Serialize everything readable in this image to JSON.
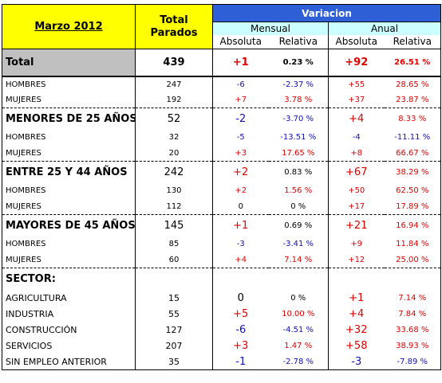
{
  "header": {
    "period": "Marzo 2012",
    "total_parados": "Total Parados",
    "variacion": "Variacion",
    "mensual": "Mensual",
    "anual": "Anual",
    "absoluta": "Absoluta",
    "relativa": "Relativa"
  },
  "rows": [
    {
      "label": "Total",
      "total": "439",
      "m_abs": "+1",
      "m_rel": "0.23 %",
      "a_abs": "+92",
      "a_rel": "26.51 %"
    },
    {
      "label": "HOMBRES",
      "total": "247",
      "m_abs": "-6",
      "m_rel": "-2.37 %",
      "a_abs": "+55",
      "a_rel": "28.65 %"
    },
    {
      "label": "MUJERES",
      "total": "192",
      "m_abs": "+7",
      "m_rel": "3.78 %",
      "a_abs": "+37",
      "a_rel": "23.87 %"
    },
    {
      "label": "MENORES DE 25 AÑOS:",
      "total": "52",
      "m_abs": "-2",
      "m_rel": "-3.70 %",
      "a_abs": "+4",
      "a_rel": "8.33 %"
    },
    {
      "label": "HOMBRES",
      "total": "32",
      "m_abs": "-5",
      "m_rel": "-13.51 %",
      "a_abs": "-4",
      "a_rel": "-11.11 %"
    },
    {
      "label": "MUJERES",
      "total": "20",
      "m_abs": "+3",
      "m_rel": "17.65 %",
      "a_abs": "+8",
      "a_rel": "66.67 %"
    },
    {
      "label": "ENTRE 25 Y 44 AÑOS",
      "total": "242",
      "m_abs": "+2",
      "m_rel": "0.83 %",
      "a_abs": "+67",
      "a_rel": "38.29 %"
    },
    {
      "label": "HOMBRES",
      "total": "130",
      "m_abs": "+2",
      "m_rel": "1.56 %",
      "a_abs": "+50",
      "a_rel": "62.50 %"
    },
    {
      "label": "MUJERES",
      "total": "112",
      "m_abs": "0",
      "m_rel": "0 %",
      "a_abs": "+17",
      "a_rel": "17.89 %"
    },
    {
      "label": "MAYORES DE 45 AÑOS",
      "total": "145",
      "m_abs": "+1",
      "m_rel": "0.69 %",
      "a_abs": "+21",
      "a_rel": "16.94 %"
    },
    {
      "label": "HOMBRES",
      "total": "85",
      "m_abs": "-3",
      "m_rel": "-3.41 %",
      "a_abs": "+9",
      "a_rel": "11.84 %"
    },
    {
      "label": "MUJERES",
      "total": "60",
      "m_abs": "+4",
      "m_rel": "7.14 %",
      "a_abs": "+12",
      "a_rel": "25.00 %"
    },
    {
      "label": "SECTOR:",
      "total": "",
      "m_abs": "",
      "m_rel": "",
      "a_abs": "",
      "a_rel": ""
    },
    {
      "label": "AGRICULTURA",
      "total": "15",
      "m_abs": "0",
      "m_rel": "0 %",
      "a_abs": "+1",
      "a_rel": "7.14 %"
    },
    {
      "label": "INDUSTRIA",
      "total": "55",
      "m_abs": "+5",
      "m_rel": "10.00 %",
      "a_abs": "+4",
      "a_rel": "7.84 %"
    },
    {
      "label": "CONSTRUCCIÓN",
      "total": "127",
      "m_abs": "-6",
      "m_rel": "-4.51 %",
      "a_abs": "+32",
      "a_rel": "33.68 %"
    },
    {
      "label": "SERVICIOS",
      "total": "207",
      "m_abs": "+3",
      "m_rel": "1.47 %",
      "a_abs": "+58",
      "a_rel": "38.93 %"
    },
    {
      "label": "SIN EMPLEO ANTERIOR",
      "total": "35",
      "m_abs": "-1",
      "m_rel": "-2.78 %",
      "a_abs": "-3",
      "a_rel": "-7.89 %"
    }
  ],
  "colors": {
    "positive": "#e00000",
    "negative": "#1010c0",
    "header_yellow": "#ffff00",
    "header_blue": "#2f5fd6",
    "header_cyan": "#ccffff",
    "total_grey": "#c0c0c0"
  }
}
